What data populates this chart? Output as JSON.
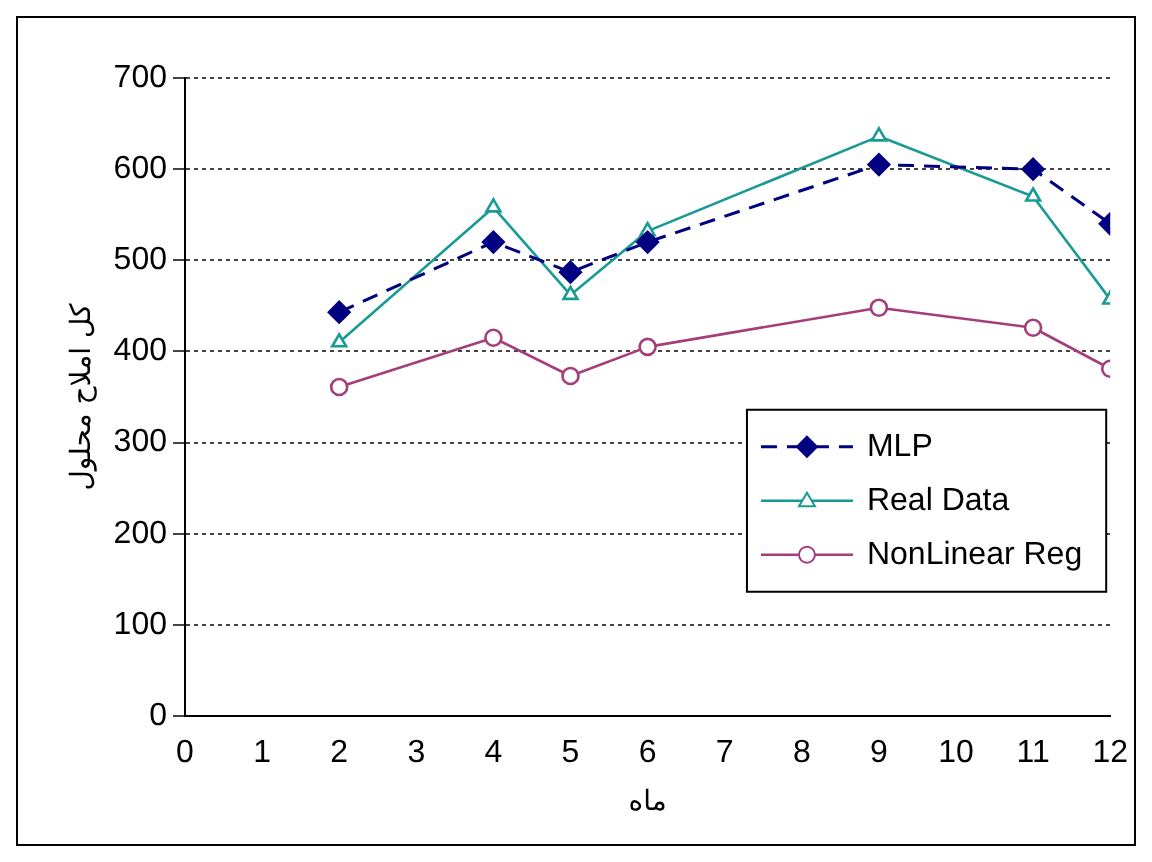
{
  "chart_data": {
    "type": "line",
    "xlabel": "ماه",
    "ylabel": "کل املاح محلول",
    "x": [
      2,
      4,
      5,
      6,
      9,
      11,
      12
    ],
    "series": [
      {
        "name": "MLP",
        "color": "#000080",
        "values": [
          443,
          520,
          487,
          520,
          605,
          600,
          540
        ],
        "marker": "diamond",
        "line_style": "dashed"
      },
      {
        "name": "Real Data",
        "color": "#1a9a94",
        "values": [
          410,
          558,
          462,
          532,
          636,
          570,
          457
        ],
        "marker": "triangle",
        "line_style": "solid"
      },
      {
        "name": "NonLinear Reg",
        "color": "#a33e7b",
        "values": [
          361,
          415,
          373,
          405,
          448,
          426,
          381
        ],
        "marker": "circle",
        "line_style": "solid"
      }
    ],
    "xlim": [
      0,
      12
    ],
    "xticks": [
      0,
      1,
      2,
      3,
      4,
      5,
      6,
      7,
      8,
      9,
      10,
      11,
      12
    ],
    "ylim": [
      0,
      700
    ],
    "yticks": [
      0,
      100,
      200,
      300,
      400,
      500,
      600,
      700
    ],
    "grid": "y",
    "legend": "right"
  }
}
